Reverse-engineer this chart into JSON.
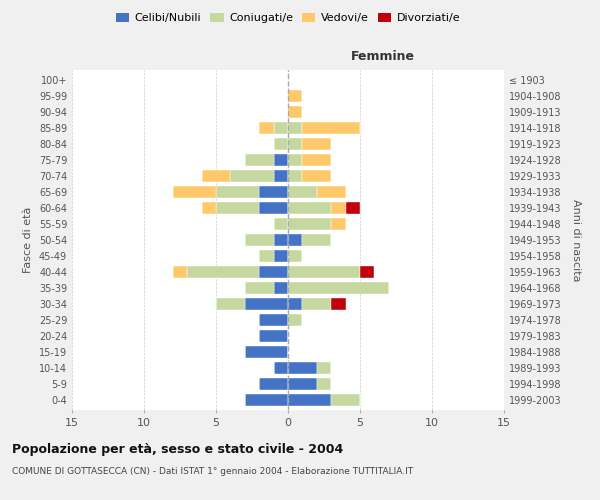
{
  "age_groups": [
    "0-4",
    "5-9",
    "10-14",
    "15-19",
    "20-24",
    "25-29",
    "30-34",
    "35-39",
    "40-44",
    "45-49",
    "50-54",
    "55-59",
    "60-64",
    "65-69",
    "70-74",
    "75-79",
    "80-84",
    "85-89",
    "90-94",
    "95-99",
    "100+"
  ],
  "birth_years": [
    "1999-2003",
    "1994-1998",
    "1989-1993",
    "1984-1988",
    "1979-1983",
    "1974-1978",
    "1969-1973",
    "1964-1968",
    "1959-1963",
    "1954-1958",
    "1949-1953",
    "1944-1948",
    "1939-1943",
    "1934-1938",
    "1929-1933",
    "1924-1928",
    "1919-1923",
    "1914-1918",
    "1909-1913",
    "1904-1908",
    "≤ 1903"
  ],
  "colors": {
    "celibe": "#4472c4",
    "coniugato": "#c5d8a0",
    "vedovo": "#ffc96b",
    "divorziato": "#c0000b"
  },
  "male": {
    "celibe": [
      3,
      2,
      1,
      3,
      2,
      2,
      3,
      1,
      2,
      1,
      1,
      0,
      2,
      2,
      1,
      1,
      0,
      0,
      0,
      0,
      0
    ],
    "coniugato": [
      0,
      0,
      0,
      0,
      0,
      0,
      2,
      2,
      5,
      1,
      2,
      1,
      3,
      3,
      3,
      2,
      1,
      1,
      0,
      0,
      0
    ],
    "vedovo": [
      0,
      0,
      0,
      0,
      0,
      0,
      0,
      0,
      1,
      0,
      0,
      0,
      1,
      3,
      2,
      0,
      0,
      1,
      0,
      0,
      0
    ],
    "divorziato": [
      0,
      0,
      0,
      0,
      0,
      0,
      0,
      0,
      0,
      0,
      0,
      0,
      0,
      0,
      0,
      0,
      0,
      0,
      0,
      0,
      0
    ]
  },
  "female": {
    "nubile": [
      3,
      2,
      2,
      0,
      0,
      0,
      1,
      0,
      0,
      0,
      1,
      0,
      0,
      0,
      0,
      0,
      0,
      0,
      0,
      0,
      0
    ],
    "coniugata": [
      2,
      1,
      1,
      0,
      0,
      1,
      2,
      7,
      5,
      1,
      2,
      3,
      3,
      2,
      1,
      1,
      1,
      1,
      0,
      0,
      0
    ],
    "vedova": [
      0,
      0,
      0,
      0,
      0,
      0,
      0,
      0,
      0,
      0,
      0,
      1,
      1,
      2,
      2,
      2,
      2,
      4,
      1,
      1,
      0
    ],
    "divorziata": [
      0,
      0,
      0,
      0,
      0,
      0,
      1,
      0,
      1,
      0,
      0,
      0,
      1,
      0,
      0,
      0,
      0,
      0,
      0,
      0,
      0
    ]
  },
  "xlim": 15,
  "title": "Popolazione per età, sesso e stato civile - 2004",
  "subtitle": "COMUNE DI GOTTASECCA (CN) - Dati ISTAT 1° gennaio 2004 - Elaborazione TUTTITALIA.IT",
  "ylabel_left": "Fasce di età",
  "ylabel_right": "Anni di nascita",
  "xlabel_right": "Femmine",
  "bg_color": "#f0f0f0",
  "plot_bg": "#ffffff",
  "grid_color": "#cccccc"
}
